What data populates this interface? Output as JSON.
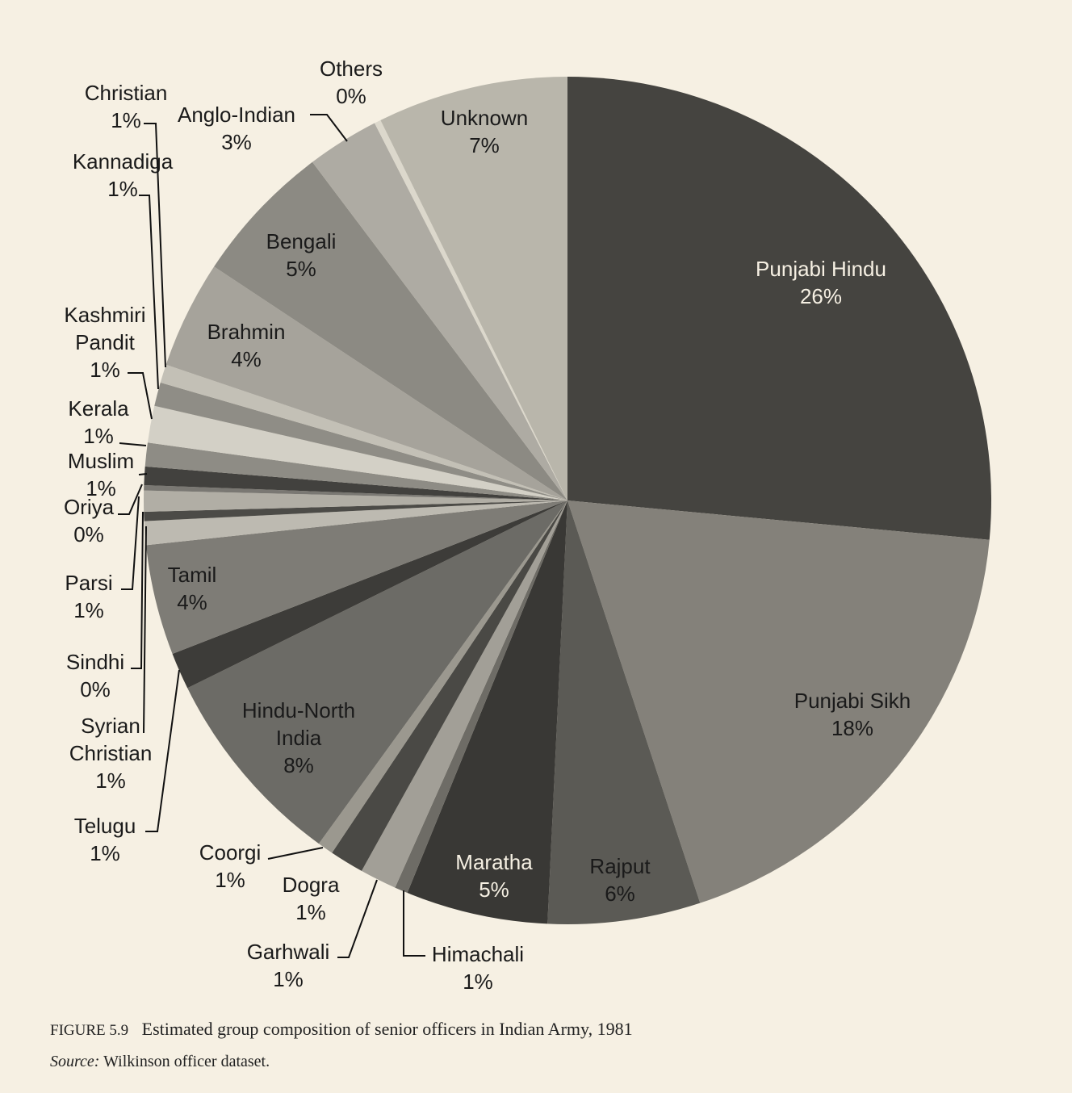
{
  "chart_data": {
    "type": "pie",
    "figure_label": "FIGURE 5.9",
    "title": "Estimated group composition of senior officers in Indian Army, 1981",
    "source_label": "Source:",
    "source": "Wilkinson officer dataset.",
    "categories": [
      "Punjabi Hindu",
      "Punjabi Sikh",
      "Rajput",
      "Maratha",
      "Himachali",
      "Garhwali",
      "Dogra",
      "Coorgi",
      "Hindu-North India",
      "Telugu",
      "Tamil",
      "Syrian Christian",
      "Sindhi",
      "Parsi",
      "Oriya",
      "Muslim",
      "Kerala",
      "Kashmiri Pandit",
      "Kannadiga",
      "Christian",
      "Brahmin",
      "Bengali",
      "Anglo-Indian",
      "Others",
      "Unknown"
    ],
    "values": [
      26.4,
      18.4,
      5.8,
      5.4,
      0.5,
      1.4,
      1.3,
      0.6,
      7.7,
      1.4,
      4.2,
      0.9,
      0.35,
      0.8,
      0.2,
      0.7,
      0.9,
      1.4,
      0.9,
      0.7,
      4.1,
      5.4,
      2.75,
      0.25,
      7.25
    ],
    "value_labels": [
      "26%",
      "18%",
      "6%",
      "5%",
      "1%",
      "1%",
      "1%",
      "1%",
      "8%",
      "1%",
      "4%",
      "1%",
      "0%",
      "1%",
      "0%",
      "1%",
      "1%",
      "1%",
      "1%",
      "1%",
      "4%",
      "5%",
      "3%",
      "0%",
      "7%"
    ],
    "colors": [
      "#454440",
      "#84817a",
      "#5b5a55",
      "#393835",
      "#6e6c66",
      "#a29f97",
      "#4a4945",
      "#9b988f",
      "#6c6b66",
      "#3d3c39",
      "#7e7c76",
      "#bdbab1",
      "#4c4b47",
      "#b1aea5",
      "#7a7873",
      "#42413e",
      "#8e8c85",
      "#d3d0c6",
      "#8f8d86",
      "#c3c0b6",
      "#a6a39b",
      "#8c8a83",
      "#aeaba3",
      "#dcd8cc",
      "#b9b6ab"
    ]
  }
}
